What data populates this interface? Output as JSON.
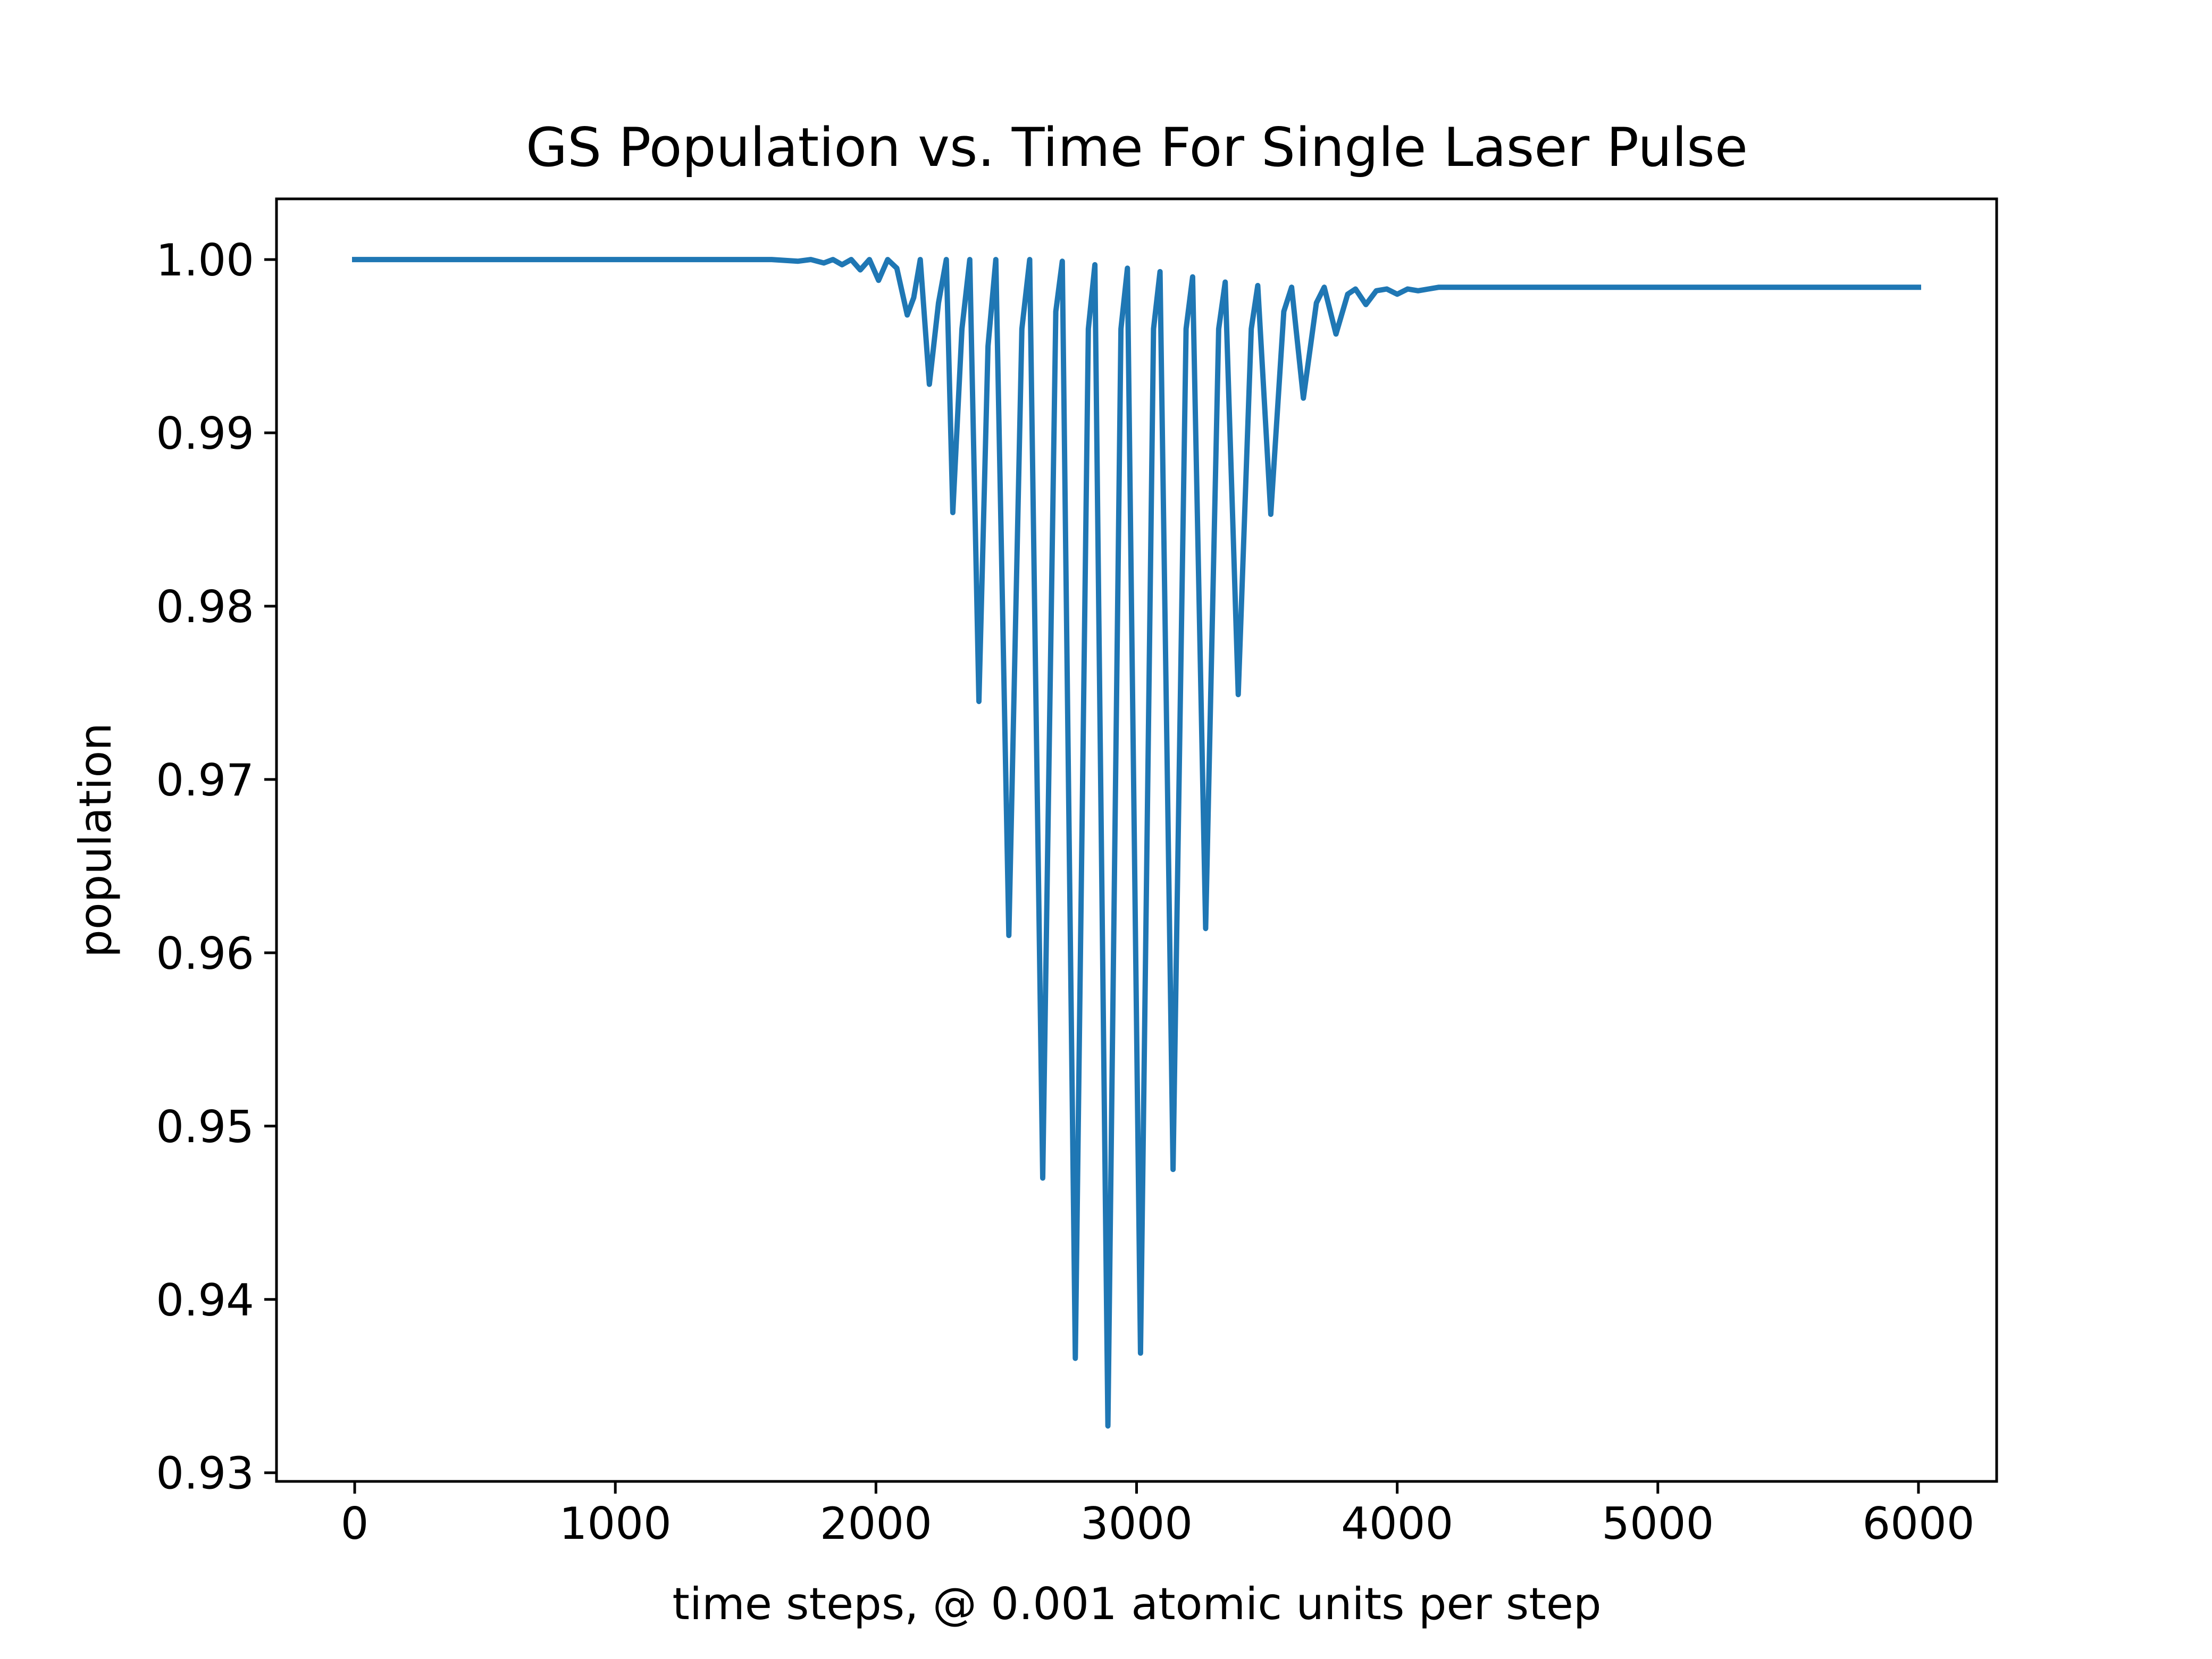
{
  "chart_data": {
    "type": "line",
    "title": "GS Population vs. Time For Single Laser Pulse",
    "xlabel": "time steps, @ 0.001 atomic units per step",
    "ylabel": "population",
    "xlim": [
      -300,
      6300
    ],
    "ylim": [
      0.9295,
      1.0035
    ],
    "x_ticks": [
      0,
      1000,
      2000,
      3000,
      4000,
      5000,
      6000
    ],
    "x_tick_labels": [
      "0",
      "1000",
      "2000",
      "3000",
      "4000",
      "5000",
      "6000"
    ],
    "y_ticks": [
      0.93,
      0.94,
      0.95,
      0.96,
      0.97,
      0.98,
      0.99,
      1.0
    ],
    "y_tick_labels": [
      "0.93",
      "0.94",
      "0.95",
      "0.96",
      "0.97",
      "0.98",
      "0.99",
      "1.00"
    ],
    "grid": false,
    "legend": null,
    "series": [
      {
        "color": "#1f77b4",
        "x": [
          0,
          1600,
          1700,
          1750,
          1800,
          1835,
          1870,
          1905,
          1940,
          1975,
          2010,
          2045,
          2080,
          2120,
          2145,
          2170,
          2205,
          2240,
          2270,
          2295,
          2330,
          2360,
          2395,
          2430,
          2460,
          2510,
          2560,
          2590,
          2640,
          2690,
          2715,
          2765,
          2815,
          2840,
          2890,
          2940,
          2965,
          3015,
          3065,
          3090,
          3140,
          3190,
          3215,
          3265,
          3315,
          3340,
          3390,
          3440,
          3465,
          3515,
          3565,
          3595,
          3640,
          3690,
          3720,
          3765,
          3810,
          3840,
          3880,
          3920,
          3960,
          4000,
          4040,
          4080,
          4120,
          4160,
          4200,
          4260,
          4350,
          4450,
          6000
        ],
        "values": [
          1.0,
          1.0,
          0.9999,
          1.0,
          0.9998,
          1.0,
          0.9997,
          1.0,
          0.9994,
          1.0,
          0.9988,
          1.0,
          0.9995,
          0.9968,
          0.9978,
          1.0,
          0.9928,
          0.9975,
          1.0,
          0.9854,
          0.996,
          1.0,
          0.9745,
          0.995,
          1.0,
          0.961,
          0.996,
          1.0,
          0.947,
          0.997,
          0.9999,
          0.9366,
          0.996,
          0.9997,
          0.9327,
          0.996,
          0.9995,
          0.9369,
          0.996,
          0.9993,
          0.9475,
          0.996,
          0.999,
          0.9614,
          0.996,
          0.9987,
          0.9749,
          0.996,
          0.9985,
          0.9853,
          0.997,
          0.9984,
          0.992,
          0.9975,
          0.9984,
          0.9957,
          0.998,
          0.9983,
          0.9974,
          0.9982,
          0.9983,
          0.998,
          0.9983,
          0.9982,
          0.9983,
          0.9984,
          0.9984,
          0.9984,
          0.9984,
          0.9984,
          0.9984
        ]
      }
    ]
  }
}
